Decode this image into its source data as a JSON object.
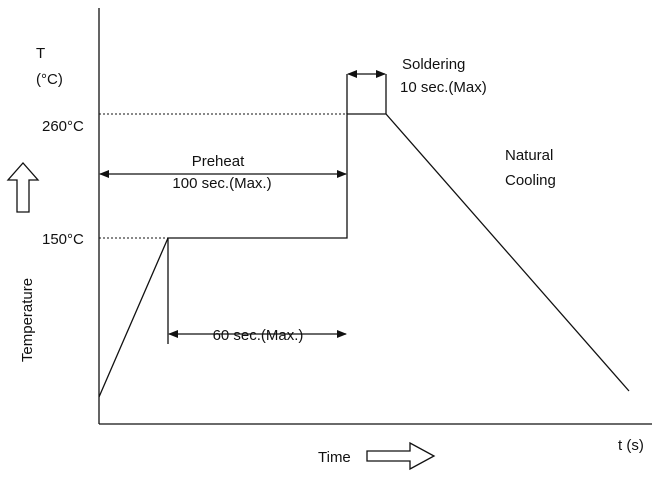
{
  "axis": {
    "y_title_line1": "T",
    "y_title_line2": "(°C)",
    "y_side_label": "Temperature",
    "x_unit_label": "t (s)",
    "x_label": "Time"
  },
  "temperatures": {
    "peak": "260°C",
    "preheat": "150°C"
  },
  "annotations": {
    "soldering": "Soldering",
    "soldering_time": "10 sec.(Max)",
    "preheat": "Preheat",
    "preheat_time": "100 sec.(Max.)",
    "hold_time": "60 sec.(Max.)",
    "cooling_line1": "Natural",
    "cooling_line2": "Cooling"
  }
}
